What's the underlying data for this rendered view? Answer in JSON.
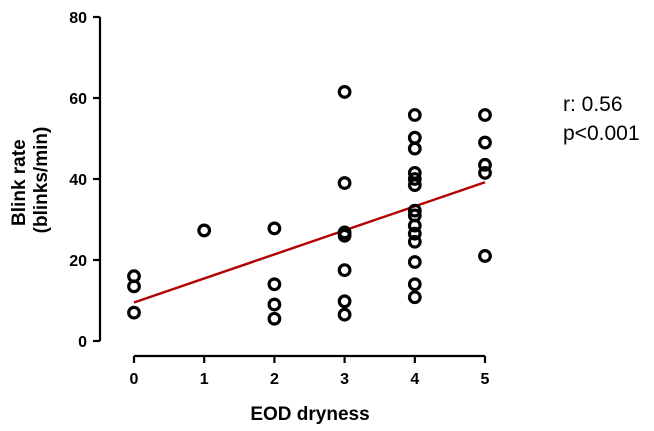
{
  "chart_data": {
    "type": "scatter",
    "xlabel": "EOD dryness",
    "ylabel_lines": [
      "Blink rate",
      "(blinks/min)"
    ],
    "xlim": [
      0,
      5
    ],
    "ylim": [
      0,
      80
    ],
    "x_ticks": [
      0,
      1,
      2,
      3,
      4,
      5
    ],
    "y_ticks": [
      0,
      20,
      40,
      60,
      80
    ],
    "grid": false,
    "point_color": "#000000",
    "fit_line_color": "#b30000",
    "series": [
      {
        "points": [
          {
            "x": 0,
            "y": 16
          },
          {
            "x": 0,
            "y": 13.5
          },
          {
            "x": 0,
            "y": 7
          },
          {
            "x": 1,
            "y": 27.3
          },
          {
            "x": 2,
            "y": 27.8
          },
          {
            "x": 2,
            "y": 14
          },
          {
            "x": 2,
            "y": 9
          },
          {
            "x": 2,
            "y": 5.5
          },
          {
            "x": 3,
            "y": 61.5
          },
          {
            "x": 3,
            "y": 39
          },
          {
            "x": 3,
            "y": 26.8
          },
          {
            "x": 3,
            "y": 26
          },
          {
            "x": 3,
            "y": 17.5
          },
          {
            "x": 3,
            "y": 9.8
          },
          {
            "x": 3,
            "y": 6.5
          },
          {
            "x": 4,
            "y": 55.8
          },
          {
            "x": 4,
            "y": 50.2
          },
          {
            "x": 4,
            "y": 47.5
          },
          {
            "x": 4,
            "y": 41.5
          },
          {
            "x": 4,
            "y": 40
          },
          {
            "x": 4,
            "y": 38.5
          },
          {
            "x": 4,
            "y": 32.2
          },
          {
            "x": 4,
            "y": 31
          },
          {
            "x": 4,
            "y": 28.5
          },
          {
            "x": 4,
            "y": 26.5
          },
          {
            "x": 4,
            "y": 24.5
          },
          {
            "x": 4,
            "y": 19.5
          },
          {
            "x": 4,
            "y": 14
          },
          {
            "x": 4,
            "y": 10.8
          },
          {
            "x": 5,
            "y": 55.8
          },
          {
            "x": 5,
            "y": 49
          },
          {
            "x": 5,
            "y": 43.5
          },
          {
            "x": 5,
            "y": 41.5
          },
          {
            "x": 5,
            "y": 21
          }
        ]
      }
    ],
    "fit_line": {
      "x": [
        0,
        5
      ],
      "y": [
        9.5,
        39.2
      ]
    },
    "annotations": [
      "r: 0.56",
      "p<0.001"
    ]
  }
}
